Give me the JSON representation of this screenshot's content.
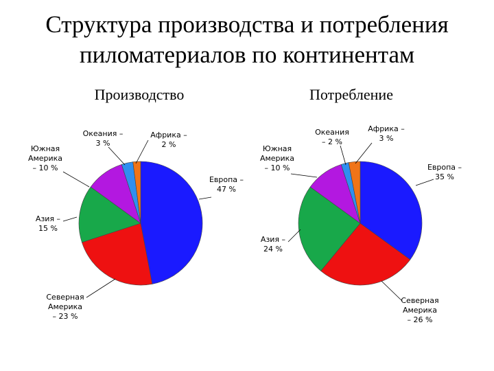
{
  "slide": {
    "title_line1": "Структура производства и потребления",
    "title_line2": "пиломатериалов по континентам"
  },
  "colors": {
    "europe": "#1a1aff",
    "north_america": "#ee1111",
    "asia": "#18a84a",
    "south_america": "#b318e0",
    "oceania": "#2f8ff0",
    "africa": "#f07418"
  },
  "chart_data": [
    {
      "type": "pie",
      "title": "Производство",
      "slices": [
        {
          "key": "europe",
          "value": 47,
          "label": [
            "Европа –",
            "47 %"
          ]
        },
        {
          "key": "north_america",
          "value": 23,
          "label": [
            "Северная",
            "Америка",
            "– 23 %"
          ]
        },
        {
          "key": "asia",
          "value": 15,
          "label": [
            "Азия –",
            "15 %"
          ]
        },
        {
          "key": "south_america",
          "value": 10,
          "label": [
            "Южная",
            "Америка",
            "– 10 %"
          ]
        },
        {
          "key": "oceania",
          "value": 3,
          "label": [
            "Океания –",
            "3 %"
          ]
        },
        {
          "key": "africa",
          "value": 2,
          "label": [
            "Африка –",
            "2 %"
          ]
        }
      ]
    },
    {
      "type": "pie",
      "title": "Потребление",
      "slices": [
        {
          "key": "europe",
          "value": 35,
          "label": [
            "Европа –",
            "35 %"
          ]
        },
        {
          "key": "north_america",
          "value": 26,
          "label": [
            "Северная",
            "Америка",
            "– 26 %"
          ]
        },
        {
          "key": "asia",
          "value": 24,
          "label": [
            "Азия –",
            "24 %"
          ]
        },
        {
          "key": "south_america",
          "value": 10,
          "label": [
            "Южная",
            "Америка",
            "– 10 %"
          ]
        },
        {
          "key": "oceania",
          "value": 2,
          "label": [
            "Океания",
            "– 2 %"
          ]
        },
        {
          "key": "africa",
          "value": 3,
          "label": [
            "Африка –",
            "3 %"
          ]
        }
      ]
    }
  ]
}
